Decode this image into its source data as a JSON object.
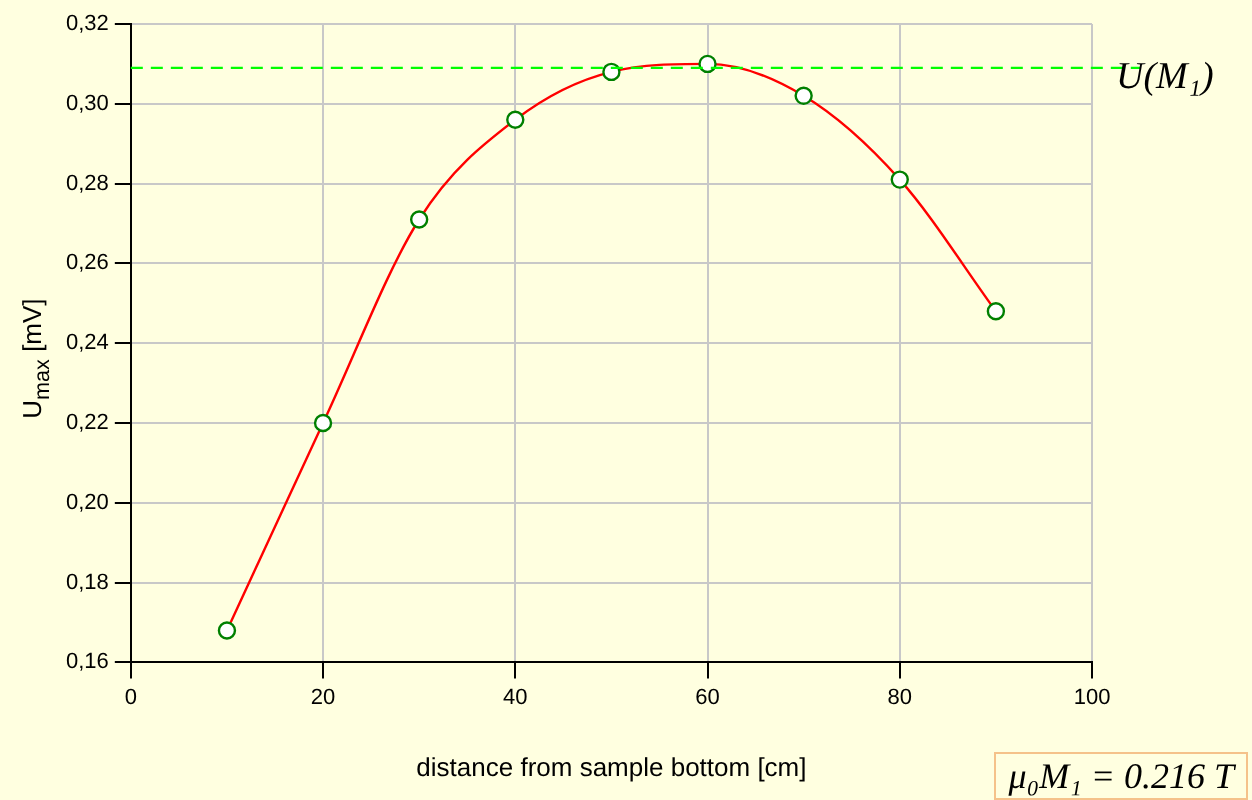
{
  "chart_data": {
    "type": "line",
    "xlabel": "distance from sample bottom [cm]",
    "ylabel": "U$_{max}$ [mV]",
    "x": [
      10,
      20,
      30,
      40,
      50,
      60,
      70,
      80,
      90
    ],
    "series": [
      {
        "color": "#ff0000",
        "values": [
          0.168,
          0.22,
          0.271,
          0.296,
          0.308,
          0.31,
          0.302,
          0.281,
          0.248
        ]
      }
    ],
    "xlim": [
      0,
      100
    ],
    "xticks": [
      0,
      20,
      40,
      60,
      80,
      100
    ],
    "ylim": [
      0.16,
      0.32
    ],
    "yticks": [
      {
        "value": 0.16,
        "label": "0,16"
      },
      {
        "value": 0.18,
        "label": "0,18"
      },
      {
        "value": 0.2,
        "label": "0,20"
      },
      {
        "value": 0.22,
        "label": "0,22"
      },
      {
        "value": 0.24,
        "label": "0,24"
      },
      {
        "value": 0.26,
        "label": "0,26"
      },
      {
        "value": 0.28,
        "label": "0,28"
      },
      {
        "value": 0.3,
        "label": "0,30"
      },
      {
        "value": 0.32,
        "label": "0,32"
      }
    ],
    "ref_lines": [
      {
        "axis": "y",
        "value": 0.309,
        "label": "U(M₁)",
        "color": "#00ff00",
        "line_style": "dashed"
      }
    ],
    "annotations": [
      "μ₀M₁ = 0.216 T"
    ],
    "grid": true,
    "marker": "circle",
    "line_style": "solid"
  }
}
